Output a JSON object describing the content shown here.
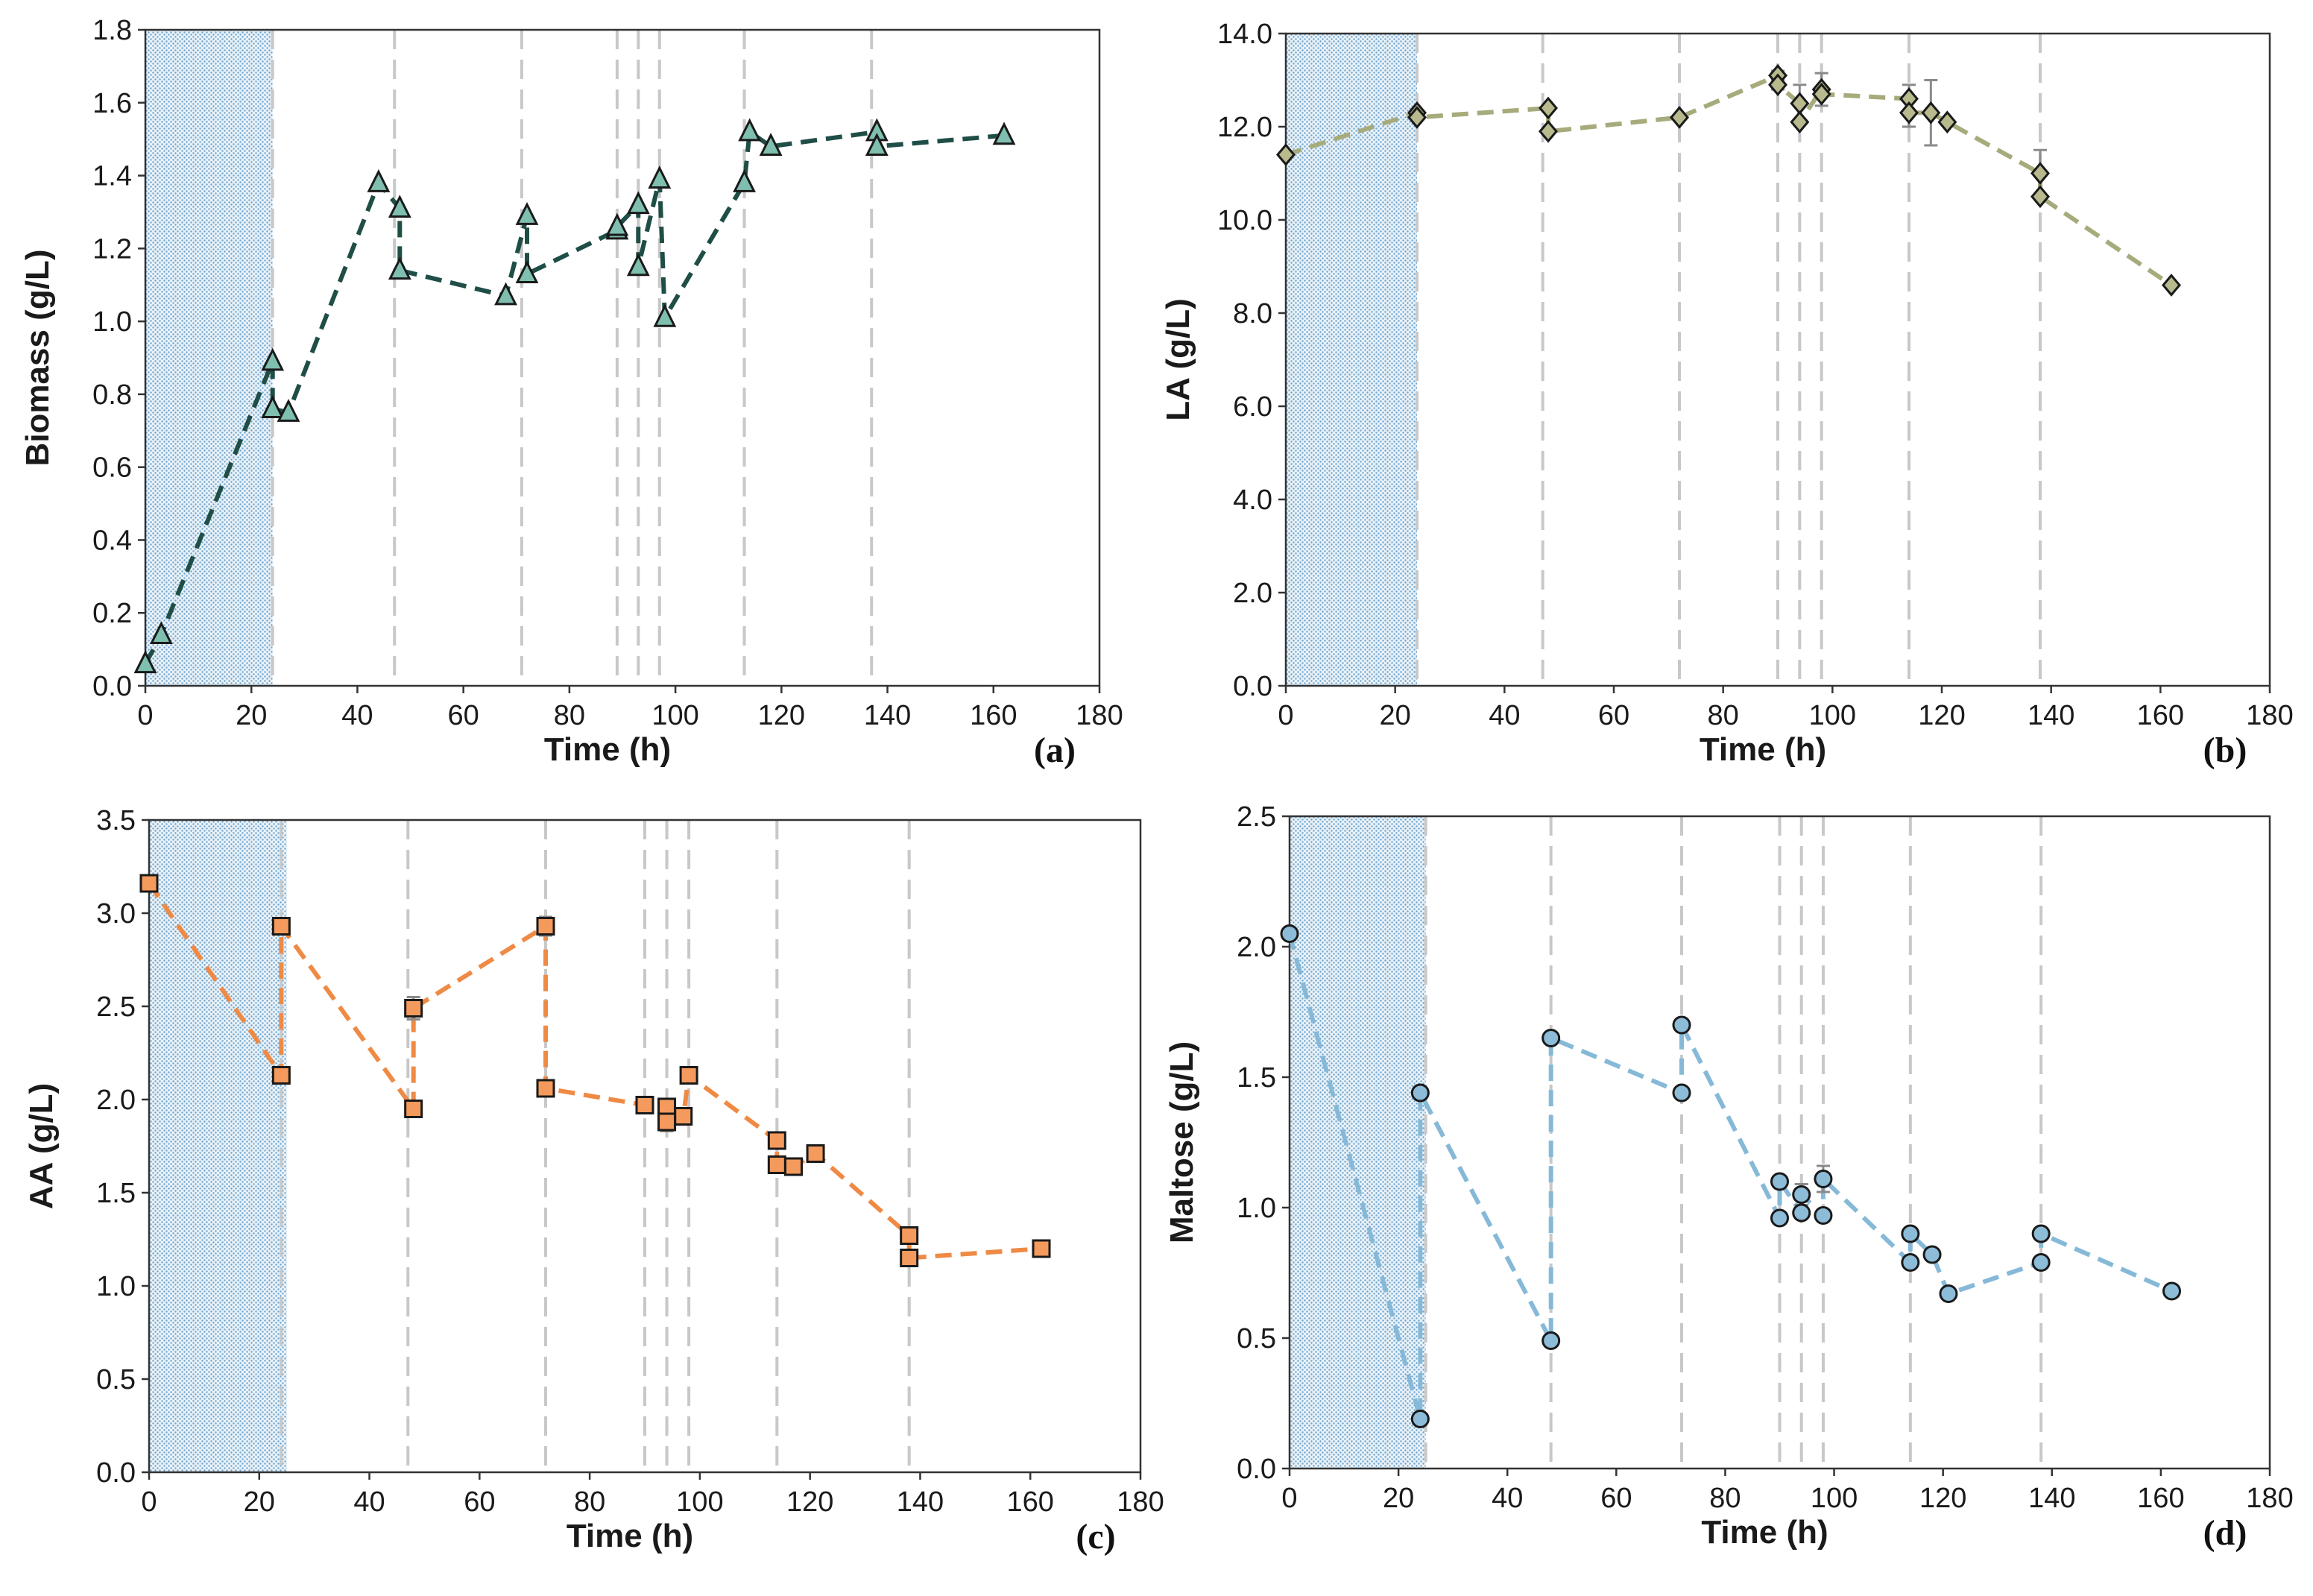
{
  "chart_data": [
    {
      "id": "a",
      "type": "line",
      "panel_label": "(a)",
      "xlabel": "Time (h)",
      "ylabel": "Biomass (g/L)",
      "xlim": [
        0,
        180
      ],
      "ylim": [
        0,
        1.8
      ],
      "xticks": [
        0,
        20,
        40,
        60,
        80,
        100,
        120,
        140,
        160,
        180
      ],
      "yticks": [
        0.0,
        0.2,
        0.4,
        0.6,
        0.8,
        1.0,
        1.2,
        1.4,
        1.6,
        1.8
      ],
      "ytick_labels": [
        "0.0",
        "0.2",
        "0.4",
        "0.6",
        "0.8",
        "1.0",
        "1.2",
        "1.4",
        "1.6",
        "1.8"
      ],
      "shaded_region": [
        0,
        24
      ],
      "phase_lines": [
        24,
        47,
        71,
        89,
        93,
        97,
        113,
        137
      ],
      "marker": "triangle",
      "color": "#1f4e46",
      "marker_fill": "#7fbfb0",
      "series": [
        {
          "name": "Biomass",
          "x": [
            0,
            3,
            24,
            24,
            27,
            44,
            48,
            48,
            68,
            72,
            72,
            89,
            89,
            93,
            93,
            97,
            98,
            113,
            114,
            118,
            138,
            138,
            162
          ],
          "y": [
            0.06,
            0.14,
            0.89,
            0.76,
            0.75,
            1.38,
            1.31,
            1.14,
            1.07,
            1.29,
            1.13,
            1.25,
            1.26,
            1.32,
            1.15,
            1.39,
            1.01,
            1.38,
            1.52,
            1.48,
            1.52,
            1.48,
            1.51
          ]
        }
      ]
    },
    {
      "id": "b",
      "type": "line",
      "panel_label": "(b)",
      "xlabel": "Time (h)",
      "ylabel": "LA (g/L)",
      "xlim": [
        0,
        180
      ],
      "ylim": [
        0,
        14
      ],
      "xticks": [
        0,
        20,
        40,
        60,
        80,
        100,
        120,
        140,
        160,
        180
      ],
      "yticks": [
        0,
        2,
        4,
        6,
        8,
        10,
        12,
        14
      ],
      "ytick_labels": [
        "0.0",
        "2.0",
        "4.0",
        "6.0",
        "8.0",
        "10.0",
        "12.0",
        "14.0"
      ],
      "shaded_region": [
        0,
        24
      ],
      "phase_lines": [
        24,
        47,
        72,
        90,
        94,
        98,
        114,
        138
      ],
      "marker": "diamond",
      "color": "#a7ab7c",
      "marker_fill": "#b8ba8e",
      "series": [
        {
          "name": "LA",
          "x": [
            0,
            24,
            24,
            48,
            48,
            72,
            90,
            90,
            94,
            94,
            98,
            98,
            114,
            114,
            118,
            121,
            138,
            138,
            162
          ],
          "y": [
            11.4,
            12.3,
            12.2,
            12.4,
            11.9,
            12.2,
            13.1,
            12.9,
            12.5,
            12.1,
            12.8,
            12.7,
            12.6,
            12.3,
            12.3,
            12.1,
            11.0,
            10.5,
            8.6
          ],
          "err": [
            0,
            0,
            0,
            0,
            0,
            0,
            0.1,
            0.1,
            0.4,
            0,
            0.35,
            0,
            0.3,
            0.3,
            0.7,
            0,
            0.5,
            0,
            0
          ]
        }
      ]
    },
    {
      "id": "c",
      "type": "line",
      "panel_label": "(c)",
      "xlabel": "Time (h)",
      "ylabel": "AA (g/L)",
      "xlim": [
        0,
        180
      ],
      "ylim": [
        0,
        3.5
      ],
      "xticks": [
        0,
        20,
        40,
        60,
        80,
        100,
        120,
        140,
        160,
        180
      ],
      "yticks": [
        0.0,
        0.5,
        1.0,
        1.5,
        2.0,
        2.5,
        3.0,
        3.5
      ],
      "ytick_labels": [
        "0.0",
        "0.5",
        "1.0",
        "1.5",
        "2.0",
        "2.5",
        "3.0",
        "3.5"
      ],
      "shaded_region": [
        0,
        25
      ],
      "phase_lines": [
        24,
        47,
        72,
        90,
        94,
        98,
        114,
        138
      ],
      "marker": "square",
      "color": "#ef8a45",
      "marker_fill": "#f49a5c",
      "series": [
        {
          "name": "AA",
          "x": [
            0,
            24,
            24,
            48,
            48,
            72,
            72,
            90,
            94,
            94,
            97,
            98,
            114,
            114,
            117,
            121,
            138,
            138,
            162
          ],
          "y": [
            3.16,
            2.13,
            2.93,
            1.95,
            2.49,
            2.93,
            2.06,
            1.97,
            1.96,
            1.88,
            1.91,
            2.13,
            1.78,
            1.65,
            1.64,
            1.71,
            1.27,
            1.15,
            1.2
          ],
          "err": [
            0,
            0,
            0,
            0,
            0.06,
            0.05,
            0,
            0,
            0.03,
            0.05,
            0,
            0,
            0,
            0,
            0,
            0,
            0,
            0,
            0
          ]
        }
      ]
    },
    {
      "id": "d",
      "type": "line",
      "panel_label": "(d)",
      "xlabel": "Time (h)",
      "ylabel": "Maltose (g/L)",
      "xlim": [
        0,
        180
      ],
      "ylim": [
        0,
        2.5
      ],
      "xticks": [
        0,
        20,
        40,
        60,
        80,
        100,
        120,
        140,
        160,
        180
      ],
      "yticks": [
        0.0,
        0.5,
        1.0,
        1.5,
        2.0,
        2.5
      ],
      "ytick_labels": [
        "0.0",
        "0.5",
        "1.0",
        "1.5",
        "2.0",
        "2.5"
      ],
      "shaded_region": [
        0,
        25
      ],
      "phase_lines": [
        25,
        48,
        72,
        90,
        94,
        98,
        114,
        138
      ],
      "marker": "circle",
      "color": "#86b9d8",
      "marker_fill": "#8cbcd8",
      "series": [
        {
          "name": "Maltose",
          "x": [
            0,
            24,
            24,
            48,
            48,
            72,
            72,
            90,
            90,
            94,
            94,
            98,
            98,
            114,
            114,
            118,
            121,
            138,
            138,
            162
          ],
          "y": [
            2.05,
            0.19,
            1.44,
            0.49,
            1.65,
            1.44,
            1.7,
            0.96,
            1.1,
            0.98,
            1.05,
            0.97,
            1.11,
            0.79,
            0.9,
            0.82,
            0.67,
            0.79,
            0.9,
            0.68
          ],
          "err": [
            0,
            0,
            0,
            0,
            0,
            0,
            0,
            0,
            0,
            0,
            0.04,
            0,
            0.05,
            0,
            0,
            0,
            0,
            0,
            0,
            0
          ]
        }
      ]
    }
  ]
}
